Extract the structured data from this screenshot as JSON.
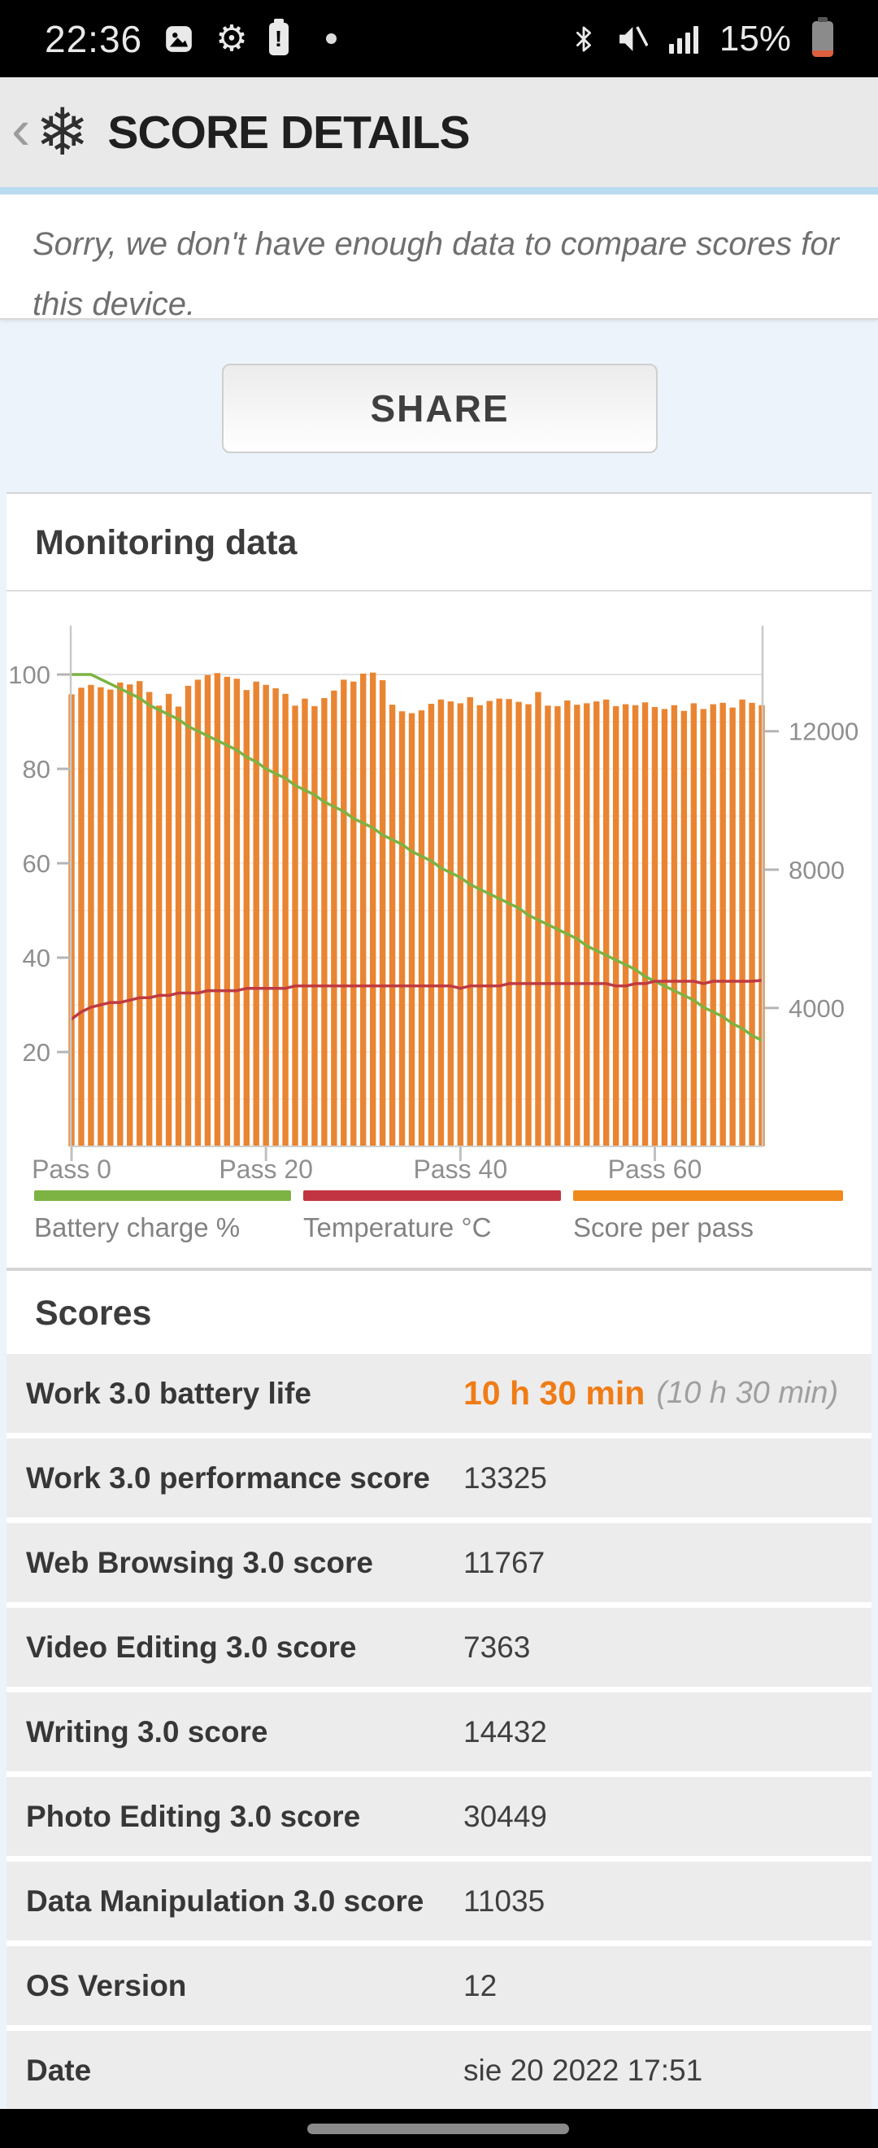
{
  "status_bar": {
    "time": "22:36",
    "battery_percent": "15%"
  },
  "header": {
    "title": "SCORE DETAILS",
    "back_glyph": "‹",
    "logo_glyph": "❄"
  },
  "notice": {
    "text": "Sorry, we don't have enough data to compare scores for this device."
  },
  "share": {
    "label": "SHARE"
  },
  "monitoring": {
    "title": "Monitoring data"
  },
  "chart_data": {
    "type": "bar+line",
    "passes": 72,
    "x_ticks": [
      "Pass 0",
      "Pass 20",
      "Pass 40",
      "Pass 60"
    ],
    "x_tick_passes": [
      0,
      20,
      40,
      60
    ],
    "left_axis": {
      "ticks": [
        20,
        40,
        60,
        80,
        100
      ],
      "range": [
        0,
        110
      ]
    },
    "right_axis": {
      "ticks": [
        4000,
        8000,
        12000
      ],
      "per_left_unit": 136.4
    },
    "series": [
      {
        "name": "Battery charge %",
        "type": "line",
        "axis": "left",
        "color": "#7cb342",
        "values": [
          100,
          100,
          100,
          99,
          98,
          97,
          96,
          95,
          93.5,
          92.5,
          91.5,
          90.5,
          89,
          88,
          87,
          86,
          85,
          84,
          82.5,
          81.5,
          80,
          79,
          78,
          76.5,
          75.5,
          74.5,
          73,
          72,
          71,
          69.5,
          68.5,
          67.5,
          66,
          65,
          64,
          62.5,
          61.5,
          60.5,
          59,
          58,
          57,
          55.5,
          54.5,
          53.5,
          52.5,
          51.5,
          50.5,
          49,
          48,
          47,
          46,
          45,
          44,
          42.5,
          41.5,
          40.5,
          39.5,
          38.5,
          37.5,
          36,
          35,
          34,
          33,
          32,
          31,
          29.5,
          28.5,
          27.5,
          26,
          25,
          23.5,
          22.5
        ]
      },
      {
        "name": "Temperature °C",
        "type": "line",
        "axis": "left",
        "color": "#bf3a42",
        "values": [
          27,
          28.5,
          29.5,
          30,
          30.5,
          30.5,
          31,
          31.5,
          31.5,
          32,
          32,
          32.5,
          32.5,
          32.5,
          33,
          33,
          33,
          33,
          33.5,
          33.5,
          33.5,
          33.5,
          33.5,
          34,
          34,
          34,
          34,
          34,
          34,
          34,
          34,
          34,
          34,
          34,
          34,
          34,
          34,
          34,
          34,
          34,
          33.5,
          34,
          34,
          34,
          34,
          34.5,
          34.5,
          34.5,
          34.5,
          34.5,
          34.5,
          34.5,
          34.5,
          34.5,
          34.5,
          34.5,
          34,
          34,
          34.5,
          34.5,
          35,
          35,
          35,
          35,
          35,
          34.5,
          35,
          35,
          35,
          35,
          35,
          35.2
        ]
      },
      {
        "name": "Score per pass",
        "type": "bar",
        "axis": "right",
        "color": "#e98532",
        "values": [
          13067,
          13258,
          13340,
          13272,
          13204,
          13408,
          13354,
          13449,
          13135,
          12740,
          13081,
          12713,
          13313,
          13490,
          13626,
          13681,
          13572,
          13517,
          13190,
          13435,
          13340,
          13244,
          13081,
          12740,
          12944,
          12726,
          12958,
          13176,
          13490,
          13435,
          13667,
          13695,
          13476,
          12767,
          12576,
          12522,
          12603,
          12794,
          12917,
          12862,
          12808,
          12985,
          12753,
          12876,
          12944,
          12931,
          12849,
          12781,
          13135,
          12740,
          12726,
          12890,
          12767,
          12808,
          12862,
          12917,
          12726,
          12781,
          12753,
          12835,
          12699,
          12644,
          12753,
          12590,
          12808,
          12644,
          12781,
          12822,
          12685,
          12917,
          12822,
          12753
        ]
      }
    ],
    "legend": [
      {
        "label": "Battery charge %",
        "color": "#7cb342"
      },
      {
        "label": "Temperature °C",
        "color": "#c23441"
      },
      {
        "label": "Score per pass",
        "color": "#f0891c"
      }
    ]
  },
  "scores": {
    "title": "Scores",
    "rows": [
      {
        "label": "Work 3.0 battery life",
        "value": "10 h 30 min",
        "note": "(10 h 30 min)"
      },
      {
        "label": "Work 3.0 performance score",
        "value": "13325"
      },
      {
        "label": "Web Browsing 3.0 score",
        "value": "11767"
      },
      {
        "label": "Video Editing 3.0 score",
        "value": "7363"
      },
      {
        "label": "Writing 3.0 score",
        "value": "14432"
      },
      {
        "label": "Photo Editing 3.0 score",
        "value": "30449"
      },
      {
        "label": "Data Manipulation 3.0 score",
        "value": "11035"
      },
      {
        "label": "OS Version",
        "value": "12"
      },
      {
        "label": "Date",
        "value": "sie 20 2022 17:51"
      }
    ]
  }
}
